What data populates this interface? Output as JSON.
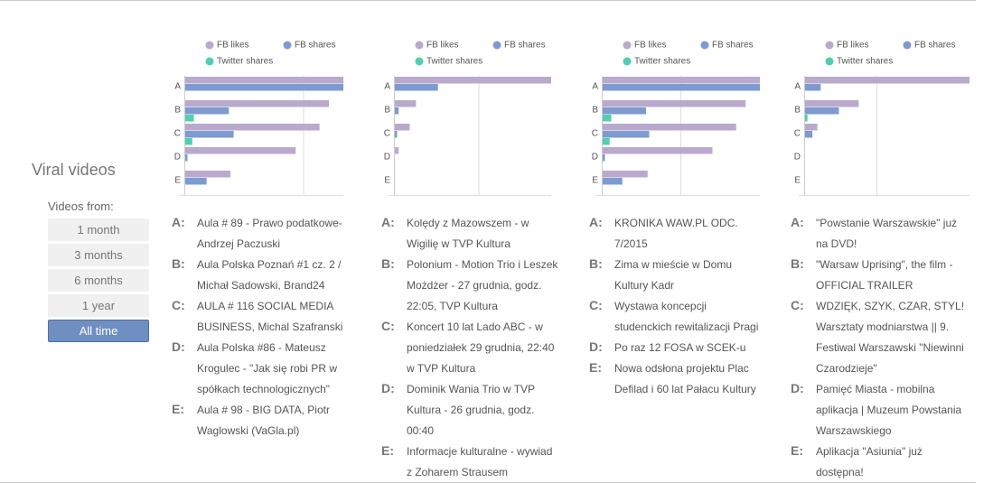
{
  "sidebar": {
    "title": "Viral videos",
    "label": "Videos from:",
    "buttons": [
      "1 month",
      "3 months",
      "6 months",
      "1 year",
      "All time"
    ],
    "selected": 4
  },
  "chart_data": [
    {
      "type": "bar",
      "orientation": "horizontal",
      "categories": [
        "A",
        "B",
        "C",
        "D",
        "E"
      ],
      "xlim": [
        0,
        100
      ],
      "gridlines": [
        75
      ],
      "series": [
        {
          "name": "FB likes",
          "color": "#b9aacd",
          "values": [
            100,
            91,
            85,
            70,
            29
          ]
        },
        {
          "name": "FB shares",
          "color": "#7d9bd0",
          "values": [
            100,
            28,
            31,
            2,
            14
          ]
        },
        {
          "name": "Twitter shares",
          "color": "#4fcfb1",
          "values": [
            0,
            6,
            5,
            0,
            0.5
          ]
        }
      ],
      "videos": [
        {
          "letter": "A:",
          "text": "Aula # 89 - Prawo podatkowe- Andrzej Paczuski"
        },
        {
          "letter": "B:",
          "text": "Aula Polska Poznań #1 cz. 2 / Michał Sadowski, Brand24"
        },
        {
          "letter": "C:",
          "text": "AULA # 116 SOCIAL MEDIA BUSINESS, Michal Szafranski"
        },
        {
          "letter": "D:",
          "text": "Aula Polska #86 - Mateusz Krogulec - \"Jak się robi PR w spółkach technologicznych\""
        },
        {
          "letter": "E:",
          "text": "Aula # 98 - BIG DATA, Piotr Waglowski (VaGla.pl)"
        }
      ]
    },
    {
      "type": "bar",
      "orientation": "horizontal",
      "categories": [
        "A",
        "B",
        "C",
        "D",
        "E"
      ],
      "xlim": [
        0,
        100
      ],
      "gridlines": [
        54
      ],
      "series": [
        {
          "name": "FB likes",
          "color": "#b9aacd",
          "values": [
            100,
            14,
            10,
            3,
            0.5
          ]
        },
        {
          "name": "FB shares",
          "color": "#7d9bd0",
          "values": [
            28,
            3,
            2,
            0,
            0
          ]
        },
        {
          "name": "Twitter shares",
          "color": "#4fcfb1",
          "values": [
            0,
            0.5,
            0.5,
            0.5,
            0.5
          ]
        }
      ],
      "videos": [
        {
          "letter": "A:",
          "text": "Kolędy z Mazowszem - w Wigilię w TVP Kultura"
        },
        {
          "letter": "B:",
          "text": "Polonium - Motion Trio i Leszek Możdżer - 27 grudnia, godz. 22:05, TVP Kultura"
        },
        {
          "letter": "C:",
          "text": "Koncert 10 lat Lado ABC - w poniedziałek 29 grudnia, 22:40 w TVP Kultura"
        },
        {
          "letter": "D:",
          "text": "Dominik Wania Trio w TVP Kultura - 26 grudnia, godz. 00:40"
        },
        {
          "letter": "E:",
          "text": "Informacje kulturalne - wywiad z Zoharem Strausem"
        }
      ]
    },
    {
      "type": "bar",
      "orientation": "horizontal",
      "categories": [
        "A",
        "B",
        "C",
        "D",
        "E"
      ],
      "xlim": [
        0,
        100
      ],
      "gridlines": [
        50
      ],
      "series": [
        {
          "name": "FB likes",
          "color": "#b9aacd",
          "values": [
            100,
            91,
            85,
            70,
            29
          ]
        },
        {
          "name": "FB shares",
          "color": "#7d9bd0",
          "values": [
            100,
            28,
            30,
            2,
            13
          ]
        },
        {
          "name": "Twitter shares",
          "color": "#4fcfb1",
          "values": [
            0,
            6,
            5,
            0,
            0
          ]
        }
      ],
      "videos": [
        {
          "letter": "A:",
          "text": "KRONIKA WAW.PL ODC. 7/2015"
        },
        {
          "letter": "B:",
          "text": "Zima w mieście w Domu Kultury Kadr"
        },
        {
          "letter": "C:",
          "text": "Wystawa koncepcji studenckich rewitalizacji Pragi"
        },
        {
          "letter": "D:",
          "text": "Po raz 12 FOSA w SCEK-u"
        },
        {
          "letter": "E:",
          "text": "Nowa odsłona projektu Plac Defilad i 60 lat Pałacu Kultury"
        }
      ]
    },
    {
      "type": "bar",
      "orientation": "horizontal",
      "categories": [
        "A",
        "B",
        "C",
        "D",
        "E"
      ],
      "xlim": [
        0,
        100
      ],
      "gridlines": [
        44
      ],
      "series": [
        {
          "name": "FB likes",
          "color": "#b9aacd",
          "values": [
            100,
            33,
            8,
            0.5,
            0
          ]
        },
        {
          "name": "FB shares",
          "color": "#7d9bd0",
          "values": [
            10,
            21,
            5,
            0,
            0
          ]
        },
        {
          "name": "Twitter shares",
          "color": "#4fcfb1",
          "values": [
            0,
            2,
            0,
            0,
            0.5
          ]
        }
      ],
      "videos": [
        {
          "letter": "A:",
          "text": "\"Powstanie Warszawskie\" już na DVD!"
        },
        {
          "letter": "B:",
          "text": "\"Warsaw Uprising\", the film - OFFICIAL TRAILER"
        },
        {
          "letter": "C:",
          "text": "WDZIĘK, SZYK, CZAR, STYL! Warsztaty modniarstwa || 9. Festiwal Warszawski \"Niewinni Czarodzieje\""
        },
        {
          "letter": "D:",
          "text": "Pamięć Miasta - mobilna aplikacja | Muzeum Powstania Warszawskiego"
        },
        {
          "letter": "E:",
          "text": "Aplikacja \"Asiunia\" już dostępna!"
        }
      ]
    }
  ]
}
